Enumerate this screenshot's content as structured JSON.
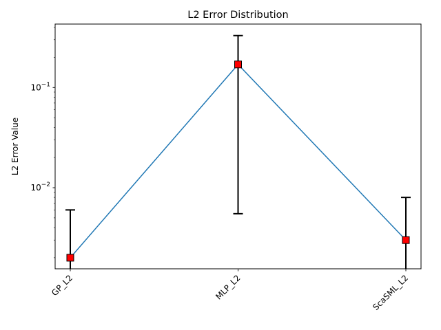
{
  "chart_data": {
    "type": "line",
    "title": "L2 Error Distribution",
    "xlabel": "",
    "ylabel": "L2 Error Value",
    "yscale": "log",
    "ylim": [
      0.00155,
      0.43
    ],
    "categories": [
      "GP_L2",
      "MLP_L2",
      "ScaSML_L2"
    ],
    "series": [
      {
        "values": [
          0.002,
          0.17,
          0.003
        ],
        "error_lower": [
          0.0012,
          0.0055,
          0.0012
        ],
        "error_upper": [
          0.006,
          0.33,
          0.008
        ],
        "line_color": "#1f77b4",
        "marker": "square",
        "marker_color": "#ff0000"
      }
    ],
    "y_ticks": [
      {
        "value": 0.01,
        "base": "10",
        "exp": "−2"
      },
      {
        "value": 0.1,
        "base": "10",
        "exp": "−1"
      }
    ],
    "x_tick_rotation": 45,
    "grid": false,
    "legend": "none"
  }
}
